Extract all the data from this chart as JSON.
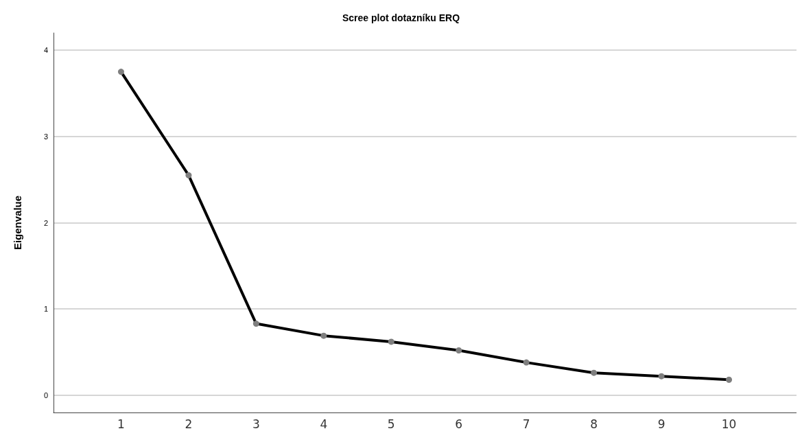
{
  "chart_data": {
    "type": "line",
    "title": "Scree plot dotazníku ERQ",
    "ylabel": "Eigenvalue",
    "x": [
      1,
      2,
      3,
      4,
      5,
      6,
      7,
      8,
      9,
      10
    ],
    "series": [
      {
        "color": "#000000",
        "values": [
          3.75,
          2.55,
          0.83,
          0.69,
          0.62,
          0.52,
          0.38,
          0.26,
          0.22,
          0.18
        ]
      }
    ],
    "xlim": [
      0,
      11
    ],
    "xticks": [
      1,
      2,
      3,
      4,
      5,
      6,
      7,
      8,
      9,
      10
    ],
    "ylim": [
      -0.2,
      4.2
    ],
    "yticks": [
      0,
      1,
      2,
      3,
      4
    ],
    "grid": "y",
    "marker": "circle",
    "line_style": "solid"
  }
}
